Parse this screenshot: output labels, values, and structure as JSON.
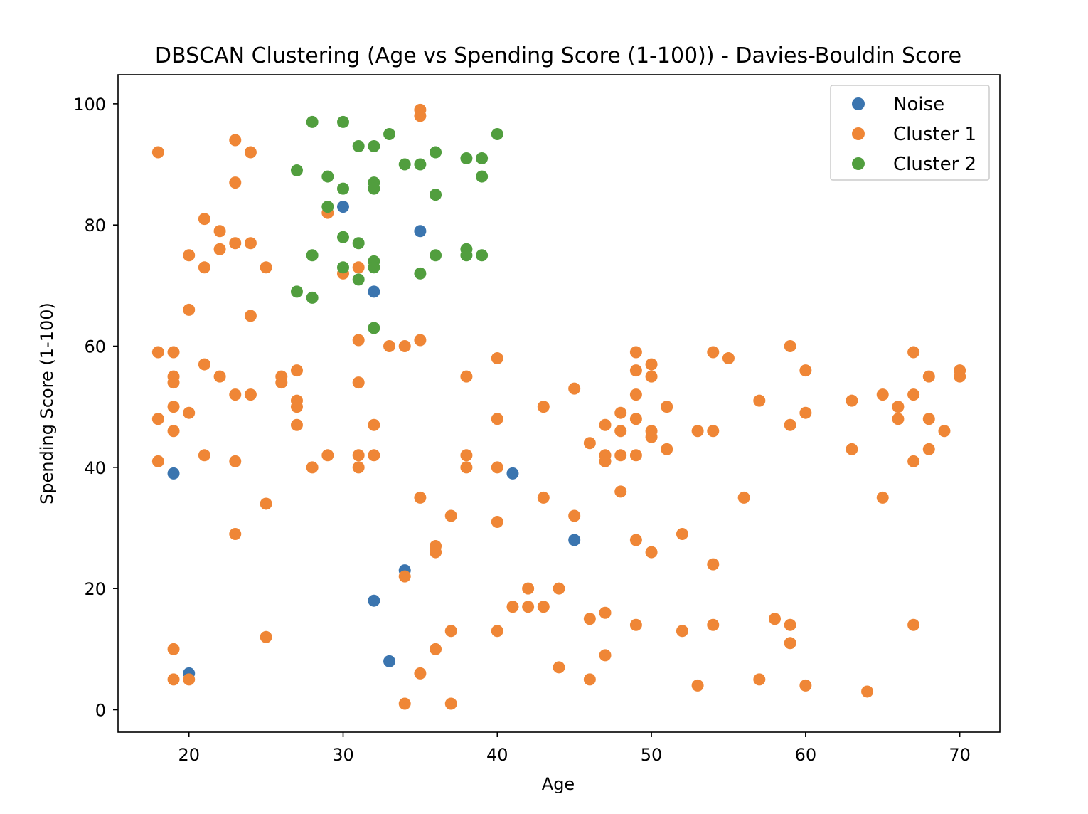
{
  "chart_data": {
    "type": "scatter",
    "title": "DBSCAN Clustering (Age vs Spending Score (1-100)) - Davies-Bouldin Score",
    "xlabel": "Age",
    "ylabel": "Spending Score (1-100)",
    "xlim": [
      15.4,
      72.6
    ],
    "ylim": [
      -3.7,
      104.8
    ],
    "xticks": [
      20,
      30,
      40,
      50,
      60,
      70
    ],
    "yticks": [
      0,
      20,
      40,
      60,
      80,
      100
    ],
    "grid": false,
    "legend_position": "top-right",
    "series": [
      {
        "name": "Noise",
        "color": "#3b75af",
        "points": [
          [
            19,
            39
          ],
          [
            20,
            6
          ],
          [
            30,
            83
          ],
          [
            32,
            69
          ],
          [
            32,
            18
          ],
          [
            33,
            8
          ],
          [
            34,
            23
          ],
          [
            35,
            79
          ],
          [
            41,
            39
          ],
          [
            45,
            28
          ]
        ]
      },
      {
        "name": "Cluster 1",
        "color": "#ef8636",
        "points": [
          [
            18,
            92
          ],
          [
            18,
            59
          ],
          [
            18,
            48
          ],
          [
            18,
            41
          ],
          [
            19,
            59
          ],
          [
            19,
            55
          ],
          [
            19,
            54
          ],
          [
            19,
            50
          ],
          [
            19,
            46
          ],
          [
            19,
            10
          ],
          [
            19,
            5
          ],
          [
            20,
            75
          ],
          [
            20,
            66
          ],
          [
            20,
            49
          ],
          [
            20,
            5
          ],
          [
            21,
            81
          ],
          [
            21,
            73
          ],
          [
            21,
            57
          ],
          [
            21,
            42
          ],
          [
            22,
            79
          ],
          [
            22,
            76
          ],
          [
            22,
            55
          ],
          [
            23,
            94
          ],
          [
            23,
            87
          ],
          [
            23,
            77
          ],
          [
            23,
            52
          ],
          [
            23,
            41
          ],
          [
            23,
            29
          ],
          [
            24,
            92
          ],
          [
            24,
            77
          ],
          [
            24,
            65
          ],
          [
            24,
            52
          ],
          [
            25,
            73
          ],
          [
            25,
            34
          ],
          [
            25,
            12
          ],
          [
            26,
            55
          ],
          [
            26,
            54
          ],
          [
            27,
            56
          ],
          [
            27,
            51
          ],
          [
            27,
            50
          ],
          [
            27,
            47
          ],
          [
            28,
            40
          ],
          [
            29,
            82
          ],
          [
            29,
            42
          ],
          [
            30,
            72
          ],
          [
            31,
            73
          ],
          [
            31,
            61
          ],
          [
            31,
            54
          ],
          [
            31,
            42
          ],
          [
            31,
            40
          ],
          [
            32,
            47
          ],
          [
            32,
            42
          ],
          [
            33,
            60
          ],
          [
            34,
            60
          ],
          [
            34,
            22
          ],
          [
            34,
            1
          ],
          [
            35,
            99
          ],
          [
            35,
            98
          ],
          [
            35,
            61
          ],
          [
            35,
            35
          ],
          [
            35,
            6
          ],
          [
            36,
            27
          ],
          [
            36,
            26
          ],
          [
            36,
            10
          ],
          [
            37,
            32
          ],
          [
            37,
            13
          ],
          [
            37,
            1
          ],
          [
            38,
            55
          ],
          [
            38,
            42
          ],
          [
            38,
            40
          ],
          [
            40,
            58
          ],
          [
            40,
            48
          ],
          [
            40,
            40
          ],
          [
            40,
            31
          ],
          [
            40,
            13
          ],
          [
            41,
            17
          ],
          [
            42,
            20
          ],
          [
            42,
            17
          ],
          [
            43,
            50
          ],
          [
            43,
            35
          ],
          [
            43,
            17
          ],
          [
            44,
            20
          ],
          [
            44,
            7
          ],
          [
            45,
            53
          ],
          [
            45,
            32
          ],
          [
            46,
            44
          ],
          [
            46,
            15
          ],
          [
            46,
            5
          ],
          [
            47,
            47
          ],
          [
            47,
            42
          ],
          [
            47,
            41
          ],
          [
            47,
            16
          ],
          [
            47,
            9
          ],
          [
            48,
            49
          ],
          [
            48,
            46
          ],
          [
            48,
            42
          ],
          [
            48,
            36
          ],
          [
            49,
            59
          ],
          [
            49,
            56
          ],
          [
            49,
            52
          ],
          [
            49,
            48
          ],
          [
            49,
            42
          ],
          [
            49,
            28
          ],
          [
            49,
            14
          ],
          [
            50,
            57
          ],
          [
            50,
            55
          ],
          [
            50,
            46
          ],
          [
            50,
            45
          ],
          [
            50,
            26
          ],
          [
            51,
            50
          ],
          [
            51,
            43
          ],
          [
            52,
            29
          ],
          [
            52,
            13
          ],
          [
            53,
            46
          ],
          [
            53,
            4
          ],
          [
            54,
            59
          ],
          [
            54,
            46
          ],
          [
            54,
            24
          ],
          [
            54,
            14
          ],
          [
            55,
            58
          ],
          [
            56,
            35
          ],
          [
            57,
            51
          ],
          [
            57,
            5
          ],
          [
            58,
            15
          ],
          [
            59,
            60
          ],
          [
            59,
            47
          ],
          [
            59,
            14
          ],
          [
            59,
            11
          ],
          [
            60,
            56
          ],
          [
            60,
            49
          ],
          [
            60,
            4
          ],
          [
            63,
            51
          ],
          [
            63,
            43
          ],
          [
            64,
            3
          ],
          [
            65,
            52
          ],
          [
            65,
            35
          ],
          [
            66,
            50
          ],
          [
            66,
            48
          ],
          [
            67,
            59
          ],
          [
            67,
            52
          ],
          [
            67,
            41
          ],
          [
            67,
            14
          ],
          [
            68,
            55
          ],
          [
            68,
            48
          ],
          [
            68,
            43
          ],
          [
            69,
            46
          ],
          [
            70,
            56
          ],
          [
            70,
            55
          ]
        ]
      },
      {
        "name": "Cluster 2",
        "color": "#519e3e",
        "points": [
          [
            27,
            89
          ],
          [
            27,
            69
          ],
          [
            28,
            97
          ],
          [
            28,
            75
          ],
          [
            28,
            68
          ],
          [
            29,
            88
          ],
          [
            29,
            83
          ],
          [
            30,
            97
          ],
          [
            30,
            86
          ],
          [
            30,
            78
          ],
          [
            30,
            73
          ],
          [
            31,
            93
          ],
          [
            31,
            77
          ],
          [
            31,
            71
          ],
          [
            32,
            93
          ],
          [
            32,
            87
          ],
          [
            32,
            86
          ],
          [
            32,
            74
          ],
          [
            32,
            73
          ],
          [
            32,
            63
          ],
          [
            33,
            95
          ],
          [
            34,
            90
          ],
          [
            35,
            90
          ],
          [
            35,
            72
          ],
          [
            36,
            92
          ],
          [
            36,
            85
          ],
          [
            36,
            75
          ],
          [
            38,
            91
          ],
          [
            38,
            76
          ],
          [
            38,
            75
          ],
          [
            39,
            91
          ],
          [
            39,
            88
          ],
          [
            39,
            75
          ],
          [
            40,
            95
          ]
        ]
      }
    ]
  }
}
